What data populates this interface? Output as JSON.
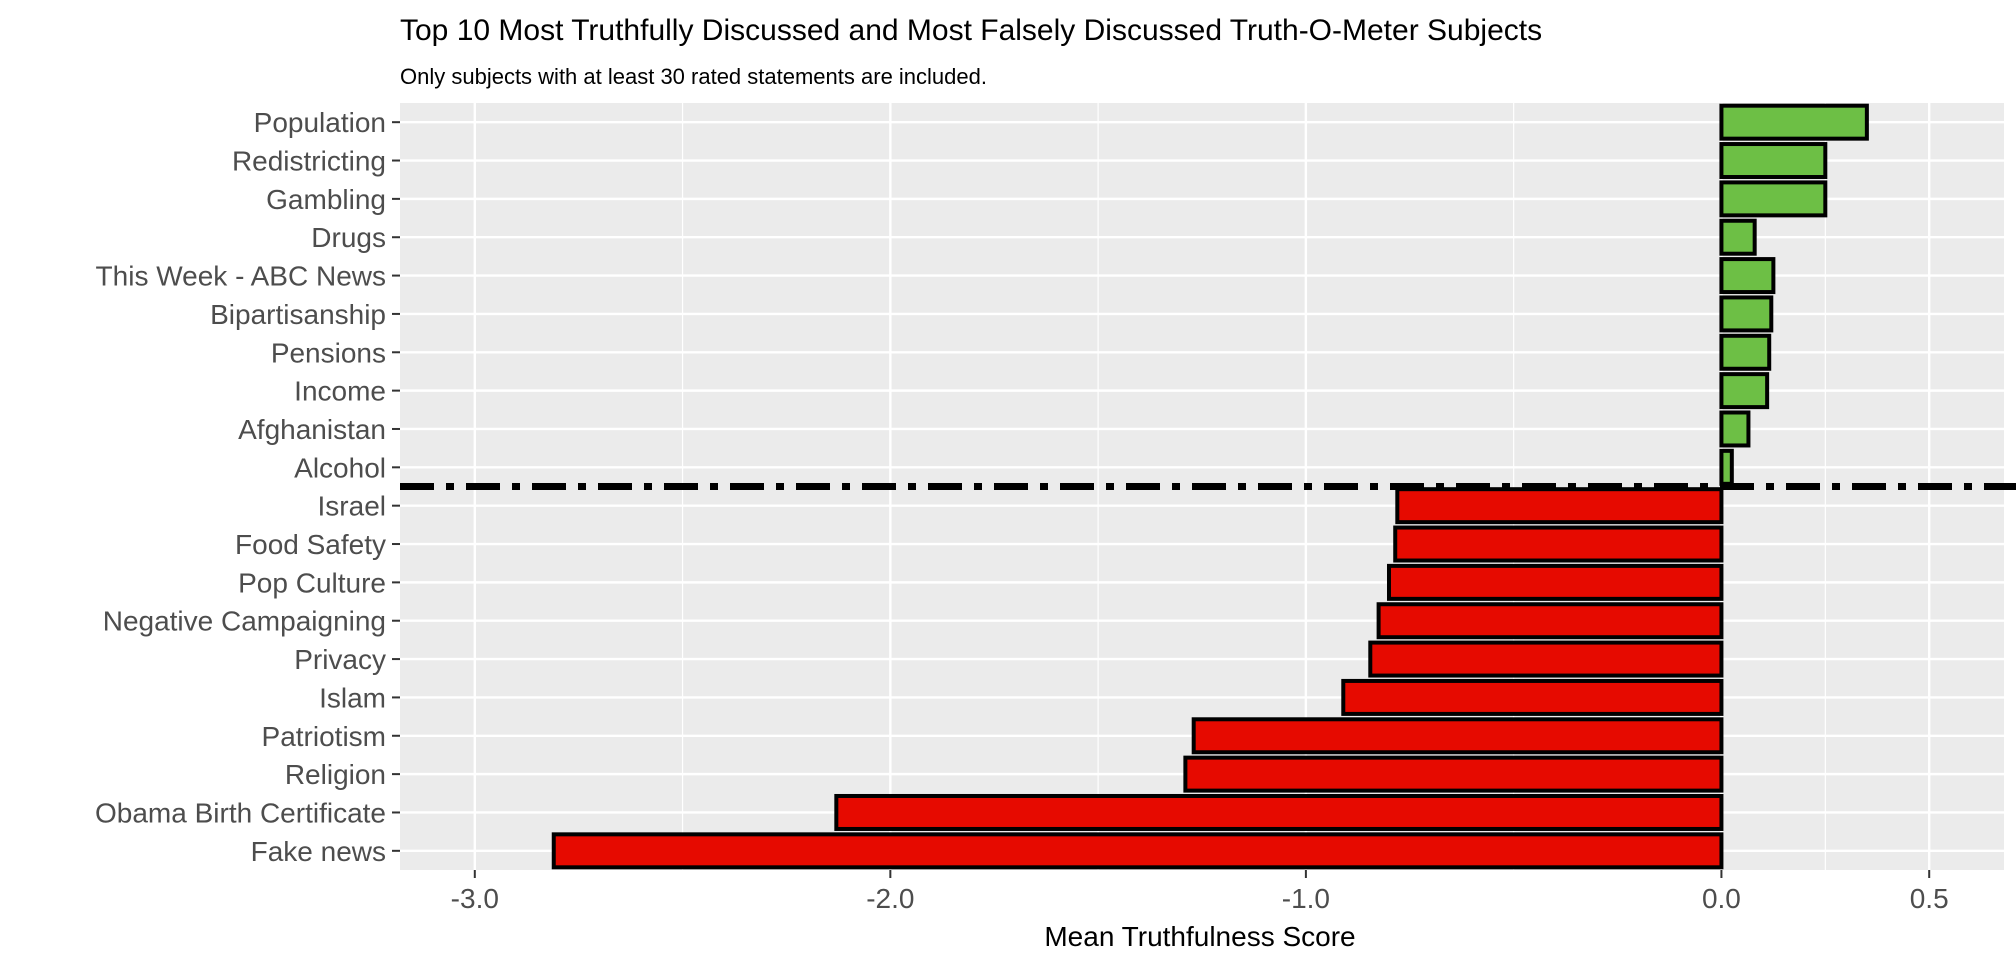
{
  "chart_data": {
    "type": "bar",
    "orientation": "horizontal",
    "title": "Top 10 Most Truthfully Discussed and Most Falsely Discussed Truth-O-Meter Subjects",
    "subtitle": "Only subjects with at least 30 rated statements are included.",
    "xlabel": "Mean Truthfulness Score",
    "ylabel": "",
    "xlim": [
      -3.18,
      0.68
    ],
    "xticks": [
      -3.0,
      -2.0,
      -1.0,
      0.0,
      0.5
    ],
    "xtick_labels": [
      "-3.0",
      "-2.0",
      "-1.0",
      "0.0",
      "0.5"
    ],
    "grid": true,
    "legend": "none",
    "categories": [
      "Population",
      "Redistricting",
      "Gambling",
      "Drugs",
      "This Week - ABC News",
      "Bipartisanship",
      "Pensions",
      "Income",
      "Afghanistan",
      "Alcohol",
      "Israel",
      "Food Safety",
      "Pop Culture",
      "Negative Campaigning",
      "Privacy",
      "Islam",
      "Patriotism",
      "Religion",
      "Obama Birth Certificate",
      "Fake news"
    ],
    "values": [
      0.35,
      0.25,
      0.25,
      0.08,
      0.125,
      0.12,
      0.115,
      0.11,
      0.065,
      0.025,
      -0.78,
      -0.785,
      -0.8,
      -0.825,
      -0.845,
      -0.91,
      -1.27,
      -1.29,
      -2.13,
      -2.81
    ],
    "colors": {
      "positive": "#6dbf45",
      "negative": "#e60a00",
      "outline": "#000000",
      "panel": "#ebebeb",
      "grid": "#ffffff",
      "separator": "#000000"
    },
    "separator": {
      "style": "dash-dot",
      "between": [
        "Alcohol",
        "Israel"
      ]
    }
  }
}
